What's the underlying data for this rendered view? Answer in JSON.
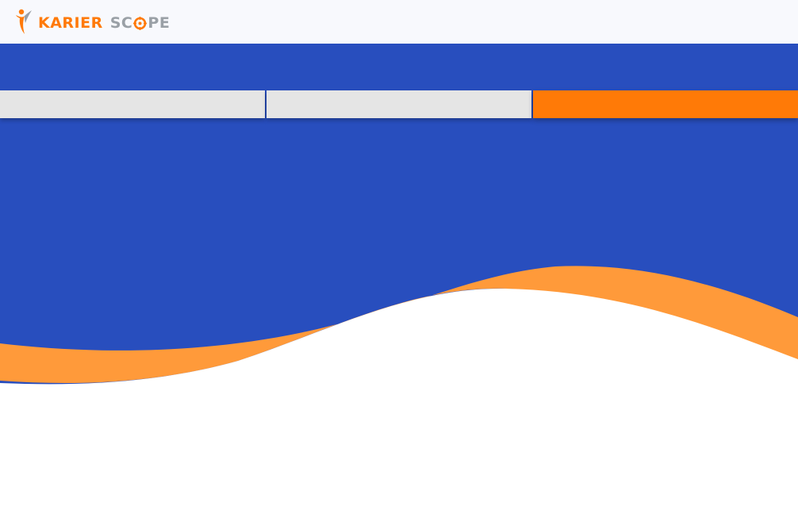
{
  "brand": {
    "name_part_1": "KARIER",
    "name_part_2_prefix": "SC",
    "name_part_2_suffix": "PE",
    "icon": "person-swoosh-logo-icon",
    "accent_color": "#ff7a0a",
    "secondary_color": "#9aa0a6"
  },
  "colors": {
    "hero_background": "#284ebe",
    "wave_orange": "#ff9a3a",
    "tab_inactive": "#e5e5e5",
    "tab_active": "#ff7a07"
  },
  "tabs": [
    {
      "label": "",
      "active": false
    },
    {
      "label": "",
      "active": false
    },
    {
      "label": "",
      "active": true
    }
  ]
}
